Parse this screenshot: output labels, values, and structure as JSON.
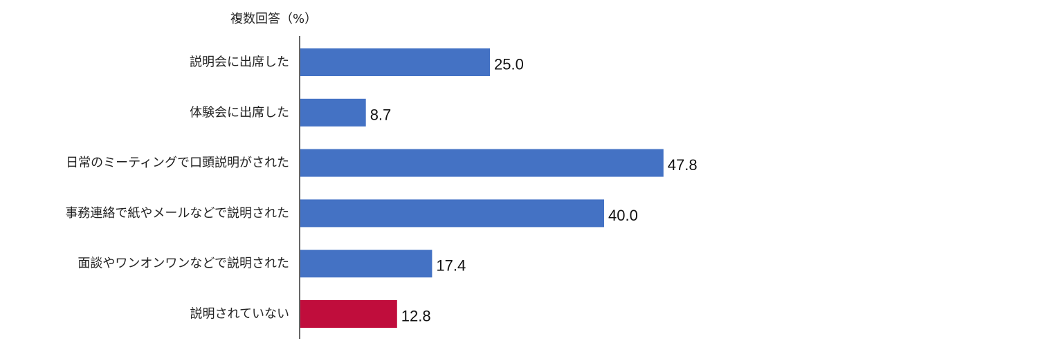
{
  "chart_data": {
    "type": "bar",
    "orientation": "horizontal",
    "unit_label": "複数回答（%）",
    "categories": [
      "説明会に出席した",
      "体験会に出席した",
      "日常のミーティングで口頭説明がされた",
      "事務連絡で紙やメールなどで説明された",
      "面談やワンオンワンなどで説明された",
      "説明されていない"
    ],
    "values": [
      25.0,
      8.7,
      47.8,
      40.0,
      17.4,
      12.8
    ],
    "value_labels": [
      "25.0",
      "8.7",
      "47.8",
      "40.0",
      "17.4",
      "12.8"
    ],
    "bar_colors": [
      "#4472c4",
      "#4472c4",
      "#4472c4",
      "#4472c4",
      "#4472c4",
      "#c00d3c"
    ],
    "xlim": [
      0,
      100
    ],
    "grid": false,
    "legend": "none"
  }
}
